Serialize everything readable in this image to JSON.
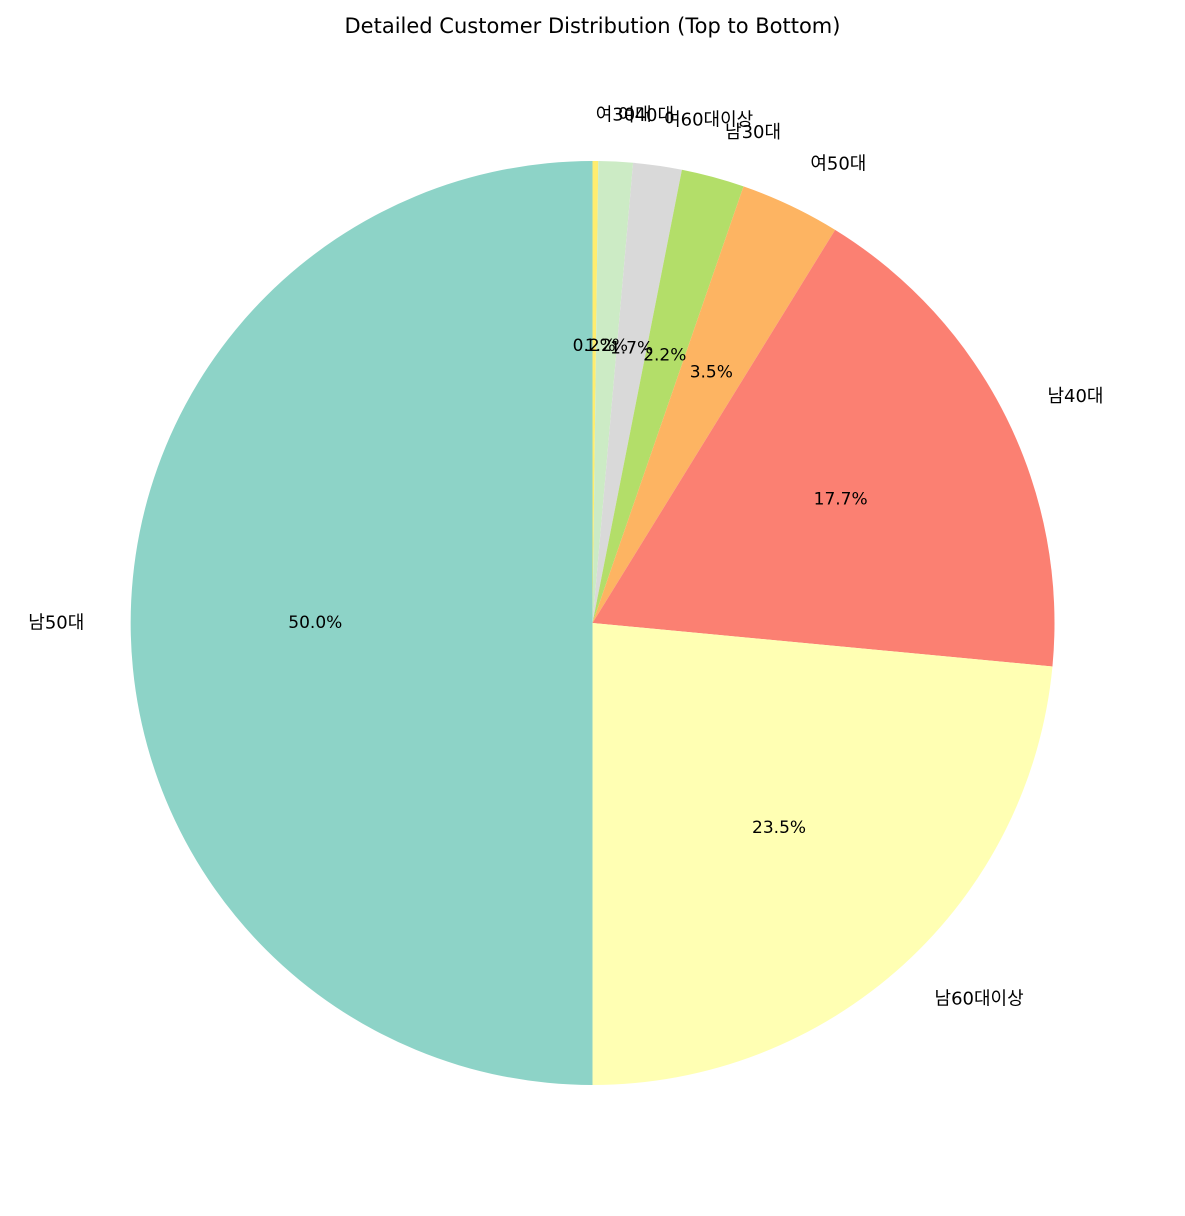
{
  "chart_data": {
    "type": "pie",
    "title": "Detailed Customer Distribution (Top to Bottom)",
    "start_angle_deg": 90,
    "direction": "clockwise",
    "slices": [
      {
        "label": "여30대",
        "value": 0.2,
        "pct_label": "0.2%",
        "color": "#ffed6f"
      },
      {
        "label": "여40대",
        "value": 1.2,
        "pct_label": "1.2%",
        "color": "#ccebc5"
      },
      {
        "label": "여60대이상",
        "value": 1.7,
        "pct_label": "1.7%",
        "color": "#d9d9d9"
      },
      {
        "label": "남30대",
        "value": 2.2,
        "pct_label": "2.2%",
        "color": "#b3de69"
      },
      {
        "label": "여50대",
        "value": 3.5,
        "pct_label": "3.5%",
        "color": "#fdb462"
      },
      {
        "label": "남40대",
        "value": 17.7,
        "pct_label": "17.7%",
        "color": "#fb8072"
      },
      {
        "label": "남60대이상",
        "value": 23.5,
        "pct_label": "23.5%",
        "color": "#ffffb3"
      },
      {
        "label": "남50대",
        "value": 50.0,
        "pct_label": "50.0%",
        "color": "#8dd3c7"
      }
    ]
  }
}
